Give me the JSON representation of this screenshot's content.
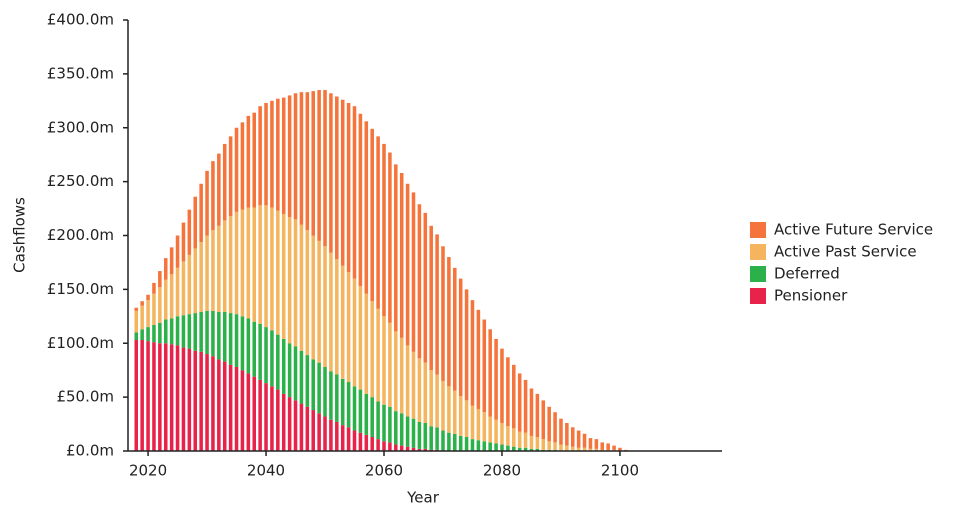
{
  "chart_data": {
    "type": "stacked_bar",
    "xlabel": "Year",
    "ylabel": "Cashflows",
    "x": [
      2018,
      2019,
      2020,
      2021,
      2022,
      2023,
      2024,
      2025,
      2026,
      2027,
      2028,
      2029,
      2030,
      2031,
      2032,
      2033,
      2034,
      2035,
      2036,
      2037,
      2038,
      2039,
      2040,
      2041,
      2042,
      2043,
      2044,
      2045,
      2046,
      2047,
      2048,
      2049,
      2050,
      2051,
      2052,
      2053,
      2054,
      2055,
      2056,
      2057,
      2058,
      2059,
      2060,
      2061,
      2062,
      2063,
      2064,
      2065,
      2066,
      2067,
      2068,
      2069,
      2070,
      2071,
      2072,
      2073,
      2074,
      2075,
      2076,
      2077,
      2078,
      2079,
      2080,
      2081,
      2082,
      2083,
      2084,
      2085,
      2086,
      2087,
      2088,
      2089,
      2090,
      2091,
      2092,
      2093,
      2094,
      2095,
      2096,
      2097,
      2098,
      2099,
      2100,
      2101
    ],
    "series": [
      {
        "name": "Active Future Service",
        "color": "#f4743b",
        "values": [
          3,
          4,
          5,
          10,
          15,
          20,
          25,
          30,
          36,
          42,
          48,
          54,
          60,
          64,
          67,
          71,
          74,
          78,
          81,
          85,
          88,
          92,
          95,
          99,
          104,
          108,
          113,
          117,
          123,
          128,
          134,
          140,
          145,
          148,
          151,
          154,
          157,
          160,
          160,
          160,
          160,
          160,
          160,
          158,
          155,
          153,
          150,
          148,
          143,
          139,
          134,
          130,
          125,
          120,
          114,
          109,
          103,
          98,
          92,
          86,
          81,
          75,
          69,
          64,
          59,
          54,
          49,
          44,
          40,
          36,
          32,
          28,
          24,
          21,
          18,
          16,
          13,
          10,
          9,
          7,
          6,
          4,
          3,
          1
        ]
      },
      {
        "name": "Active Past Service",
        "color": "#f5b55f",
        "values": [
          20,
          22,
          25,
          29,
          33,
          37,
          41,
          45,
          50,
          55,
          60,
          65,
          70,
          75,
          80,
          85,
          90,
          95,
          99,
          103,
          106,
          110,
          113,
          114,
          115,
          116,
          117,
          118,
          117,
          116,
          115,
          113,
          112,
          110,
          107,
          105,
          102,
          100,
          96,
          93,
          89,
          86,
          82,
          78,
          74,
          70,
          66,
          62,
          59,
          56,
          52,
          49,
          46,
          43,
          40,
          37,
          34,
          31,
          29,
          27,
          24,
          22,
          20,
          18,
          17,
          15,
          14,
          12,
          11,
          10,
          8,
          7,
          6,
          5,
          4,
          3,
          3,
          2,
          2,
          1,
          1,
          1,
          0,
          0
        ]
      },
      {
        "name": "Deferred",
        "color": "#2bb04a",
        "values": [
          7,
          10,
          13,
          16,
          19,
          22,
          24,
          27,
          30,
          32,
          35,
          37,
          40,
          42,
          44,
          46,
          48,
          49,
          50,
          51,
          51,
          52,
          52,
          52,
          51,
          51,
          50,
          50,
          49,
          48,
          47,
          47,
          46,
          45,
          44,
          43,
          42,
          41,
          40,
          38,
          37,
          35,
          34,
          33,
          31,
          30,
          28,
          27,
          25,
          24,
          22,
          21,
          19,
          17,
          16,
          14,
          13,
          11,
          10,
          9,
          8,
          7,
          6,
          5,
          4,
          3,
          3,
          2,
          2,
          1,
          1,
          1,
          0,
          0,
          0,
          0,
          0,
          0,
          0,
          0,
          0,
          0,
          0,
          0
        ]
      },
      {
        "name": "Pensioner",
        "color": "#e8234a",
        "values": [
          103,
          103,
          102,
          101,
          100,
          100,
          99,
          98,
          96,
          95,
          93,
          92,
          90,
          88,
          85,
          83,
          80,
          78,
          75,
          72,
          69,
          66,
          63,
          60,
          57,
          53,
          50,
          47,
          44,
          41,
          38,
          35,
          32,
          29,
          27,
          24,
          22,
          19,
          17,
          15,
          13,
          11,
          9,
          8,
          6,
          5,
          4,
          3,
          2,
          2,
          1,
          1,
          0,
          0,
          0,
          0,
          0,
          0,
          0,
          0,
          0,
          0,
          0,
          0,
          0,
          0,
          0,
          0,
          0,
          0,
          0,
          0,
          0,
          0,
          0,
          0,
          0,
          0,
          0,
          0,
          0,
          0,
          0,
          0
        ]
      }
    ],
    "xlim": [
      2016.6,
      2117.3
    ],
    "xticks": [
      2020,
      2040,
      2060,
      2080,
      2100
    ],
    "ylim": [
      0,
      400
    ],
    "yticks": [
      {
        "value": 0,
        "label": "£0.0m"
      },
      {
        "value": 50,
        "label": "£50.0m"
      },
      {
        "value": 100,
        "label": "£100.0m"
      },
      {
        "value": 150,
        "label": "£150.0m"
      },
      {
        "value": 200,
        "label": "£200.0m"
      },
      {
        "value": 250,
        "label": "£250.0m"
      },
      {
        "value": 300,
        "label": "£300.0m"
      },
      {
        "value": 350,
        "label": "£350.0m"
      },
      {
        "value": 400,
        "label": "£400.0m"
      }
    ],
    "grid": false,
    "legend": "right"
  }
}
